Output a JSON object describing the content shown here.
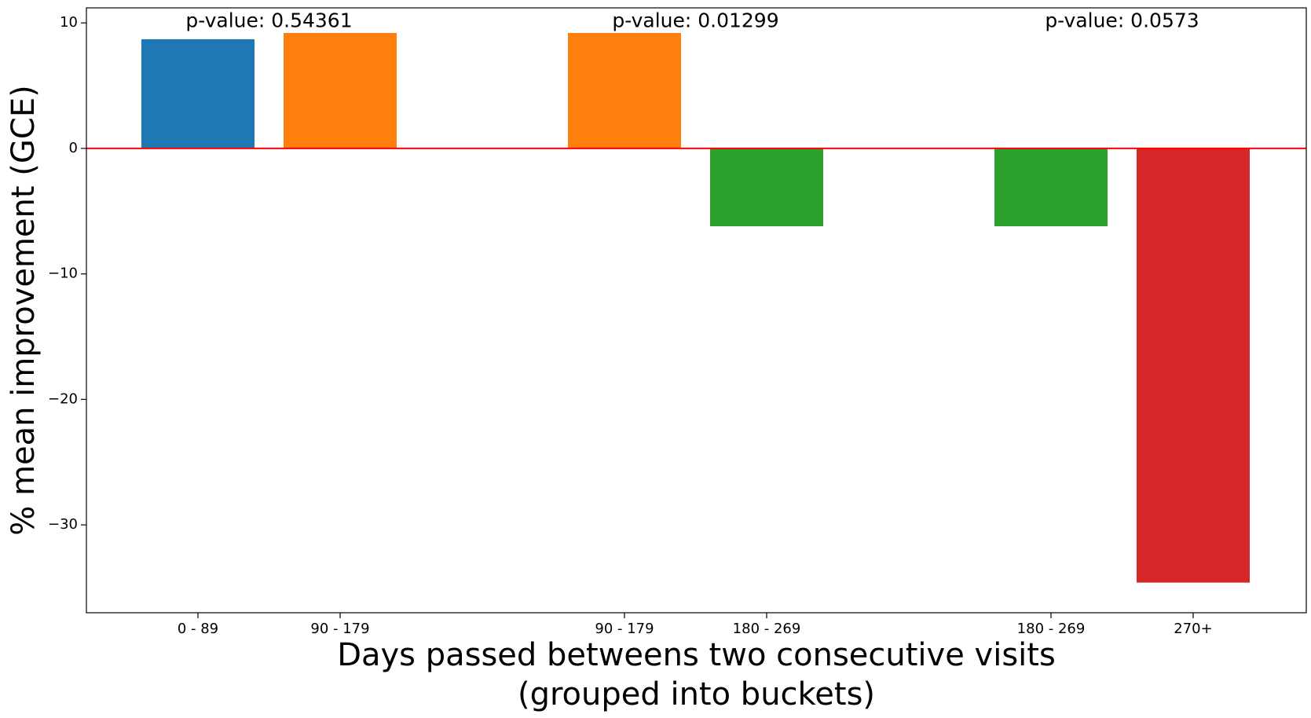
{
  "chart_data": {
    "type": "bar",
    "xlabel": [
      "Days passed betweens two consecutive visits",
      "(grouped into buckets)"
    ],
    "ylabel": "% mean improvement (GCE)",
    "ylim": [
      -37,
      11.2
    ],
    "yticks": [
      10,
      0,
      -10,
      -20,
      -30
    ],
    "ytick_labels": [
      "10",
      "0",
      "−10",
      "−20",
      "−30"
    ],
    "bars": [
      {
        "category": "0 - 89",
        "value": 8.7,
        "color": "#1f77b4"
      },
      {
        "category": "90 - 179",
        "value": 9.2,
        "color": "#ff7f0e"
      },
      {
        "category": "90 - 179",
        "value": 9.2,
        "color": "#ff7f0e"
      },
      {
        "category": "180 - 269",
        "value": -6.2,
        "color": "#2ca02c"
      },
      {
        "category": "180 - 269",
        "value": -6.2,
        "color": "#2ca02c"
      },
      {
        "category": "270+",
        "value": -34.6,
        "color": "#d62728"
      }
    ],
    "bar_slots": [
      0,
      1,
      3,
      4,
      6,
      7
    ],
    "annotations": [
      {
        "text": "p-value: 0.54361",
        "x_slot": 0.5,
        "y": 10.1
      },
      {
        "text": "p-value: 0.01299",
        "x_slot": 3.5,
        "y": 10.1
      },
      {
        "text": "p-value: 0.0573",
        "x_slot": 6.5,
        "y": 10.1
      }
    ],
    "reference_line": {
      "y": 0,
      "color": "#ff0000"
    },
    "grid": false,
    "legend": null
  }
}
